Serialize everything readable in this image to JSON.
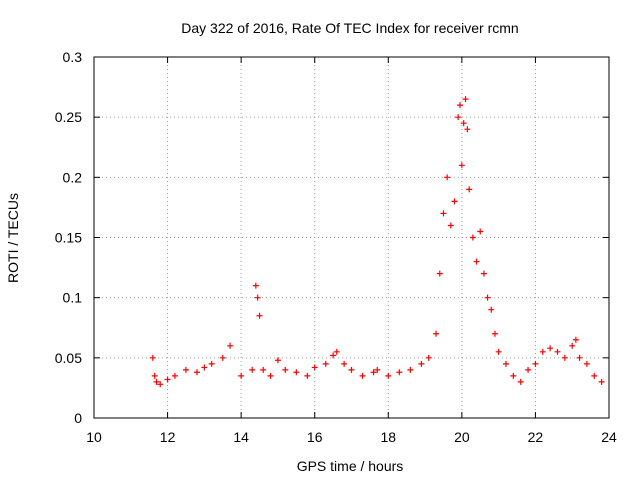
{
  "chart_data": {
    "type": "scatter",
    "title": "Day 322 of 2016, Rate Of TEC Index for receiver rcmn",
    "xlabel": "GPS time / hours",
    "ylabel": "ROTI / TECUs",
    "xlim": [
      10,
      24
    ],
    "ylim": [
      0,
      0.3
    ],
    "xticks": [
      10,
      12,
      14,
      16,
      18,
      20,
      22,
      24
    ],
    "xtick_labels": [
      "10",
      "12",
      "14",
      "16",
      "18",
      "20",
      "22",
      "24"
    ],
    "yticks": [
      0,
      0.05,
      0.1,
      0.15,
      0.2,
      0.25,
      0.3
    ],
    "ytick_labels": [
      "0",
      "0.05",
      "0.1",
      "0.15",
      "0.2",
      "0.25",
      "0.3"
    ],
    "grid": true,
    "marker": "+",
    "color": "#ff0000",
    "series": [
      {
        "name": "ROTI",
        "x": [
          11.6,
          11.65,
          11.7,
          11.8,
          12.0,
          12.2,
          12.5,
          12.8,
          13.0,
          13.2,
          13.5,
          13.7,
          14.0,
          14.3,
          14.4,
          14.45,
          14.5,
          14.6,
          14.8,
          15.0,
          15.2,
          15.5,
          15.8,
          16.0,
          16.3,
          16.5,
          16.6,
          16.8,
          17.0,
          17.3,
          17.6,
          17.7,
          18.0,
          18.3,
          18.6,
          18.9,
          19.1,
          19.3,
          19.4,
          19.5,
          19.6,
          19.7,
          19.8,
          19.9,
          19.95,
          20.0,
          20.05,
          20.1,
          20.15,
          20.2,
          20.3,
          20.4,
          20.5,
          20.6,
          20.7,
          20.8,
          20.9,
          21.0,
          21.2,
          21.4,
          21.6,
          21.8,
          22.0,
          22.2,
          22.4,
          22.6,
          22.8,
          23.0,
          23.1,
          23.2,
          23.4,
          23.6,
          23.8
        ],
        "y": [
          0.05,
          0.035,
          0.03,
          0.028,
          0.032,
          0.035,
          0.04,
          0.038,
          0.042,
          0.045,
          0.05,
          0.06,
          0.035,
          0.04,
          0.11,
          0.1,
          0.085,
          0.04,
          0.035,
          0.048,
          0.04,
          0.038,
          0.035,
          0.042,
          0.045,
          0.052,
          0.055,
          0.045,
          0.04,
          0.035,
          0.038,
          0.04,
          0.035,
          0.038,
          0.04,
          0.045,
          0.05,
          0.07,
          0.12,
          0.17,
          0.2,
          0.16,
          0.18,
          0.25,
          0.26,
          0.21,
          0.245,
          0.265,
          0.24,
          0.19,
          0.15,
          0.13,
          0.155,
          0.12,
          0.1,
          0.09,
          0.07,
          0.055,
          0.045,
          0.035,
          0.03,
          0.04,
          0.045,
          0.055,
          0.058,
          0.055,
          0.05,
          0.06,
          0.065,
          0.05,
          0.045,
          0.035,
          0.03
        ]
      }
    ]
  }
}
